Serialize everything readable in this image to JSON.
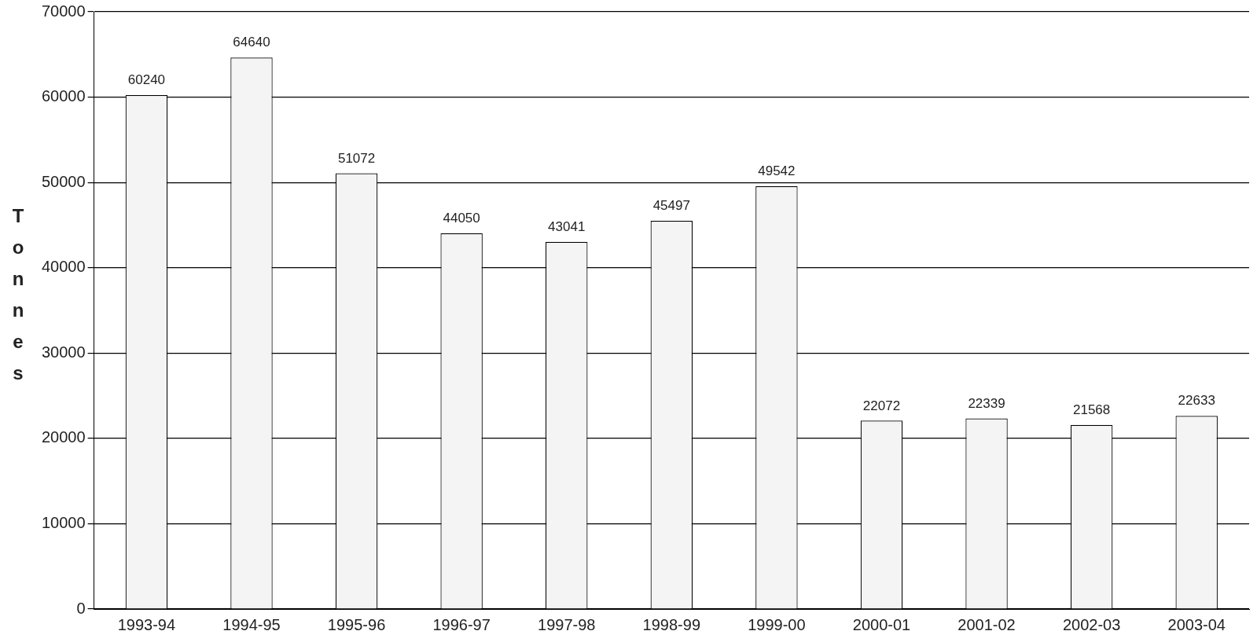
{
  "chart_data": {
    "type": "bar",
    "ylabel": "Tonnes",
    "categories": [
      "1993-94",
      "1994-95",
      "1995-96",
      "1996-97",
      "1997-98",
      "1998-99",
      "1999-00",
      "2000-01",
      "2001-02",
      "2002-03",
      "2003-04"
    ],
    "values": [
      60240,
      64640,
      51072,
      44050,
      43041,
      45497,
      49542,
      22072,
      22339,
      21568,
      22633
    ],
    "color": "#f4f4f4",
    "ylim": [
      0,
      70000
    ],
    "yticks": [
      0,
      10000,
      20000,
      30000,
      40000,
      50000,
      60000,
      70000
    ],
    "grid": "y",
    "data_labels": true
  }
}
